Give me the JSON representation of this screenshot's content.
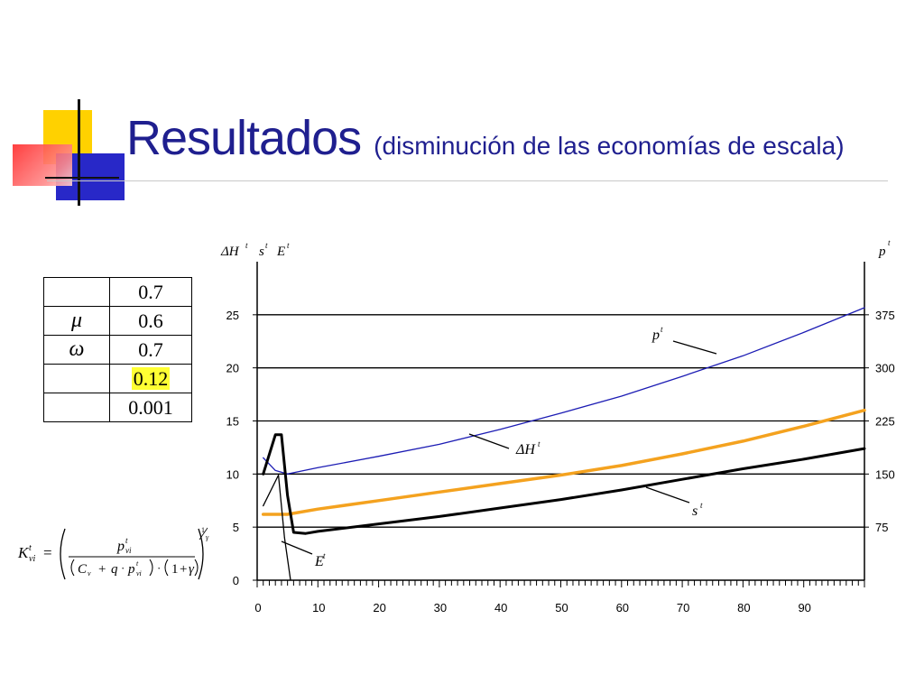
{
  "slide": {
    "title": "Resultados",
    "subtitle": "(disminución de las economías de escala)"
  },
  "params_table": {
    "rows": [
      {
        "symbol": "",
        "value": "0.7",
        "highlight": false
      },
      {
        "symbol": "μ",
        "value": "0.6",
        "highlight": false
      },
      {
        "symbol": "ω",
        "value": "0.7",
        "highlight": false
      },
      {
        "symbol": "",
        "value": "0.12",
        "highlight": true
      },
      {
        "symbol": "",
        "value": "0.001",
        "highlight": false
      }
    ]
  },
  "formula": {
    "lhs": "K",
    "lhs_sup": "t",
    "lhs_sub": "vi",
    "eq": "=",
    "num": "p",
    "num_sup": "t",
    "num_sub": "vi",
    "den_c": "C",
    "den_c_sub": "v",
    "den_plus": "+",
    "den_q": "q",
    "den_dot": "·",
    "den_p": "p",
    "den_p_sup": "t",
    "den_p_sub": "vi",
    "den_one": "1",
    "den_gamma": "γ",
    "exp_num": "1",
    "exp_den": "γ"
  },
  "colors": {
    "title": "#1f1f8f",
    "p_line": "#1c1cb4",
    "s_line": "#f4a21f",
    "E_line": "#000000",
    "highlight": "#ffff33",
    "deco_yellow": "#ffd100",
    "deco_blue": "#2828c8",
    "deco_red": "#ff2a2a"
  },
  "chart_data": {
    "type": "line",
    "left_axis_label": [
      "ΔH",
      "t",
      "s",
      "t",
      "E",
      "t"
    ],
    "right_axis_label": [
      "p",
      "t"
    ],
    "x_ticks": [
      0,
      10,
      20,
      30,
      40,
      50,
      60,
      70,
      80,
      90
    ],
    "xlim": [
      0,
      100
    ],
    "y_ticks": [
      0,
      5,
      10,
      15,
      20,
      25
    ],
    "ylim": [
      0,
      30
    ],
    "y2_ticks": [
      75,
      150,
      225,
      300,
      375
    ],
    "y2lim": [
      0,
      450
    ],
    "grid": true,
    "series": [
      {
        "name": "p",
        "sup": "t",
        "axis": "right",
        "color": "#1c1cb4",
        "width": 1.3,
        "x": [
          1,
          3,
          5,
          10,
          20,
          30,
          40,
          50,
          60,
          70,
          80,
          90,
          100
        ],
        "y": [
          173,
          155,
          150,
          159,
          175,
          192,
          213,
          236,
          260,
          288,
          317,
          350,
          385
        ]
      },
      {
        "name": "s",
        "sup": "t",
        "axis": "left",
        "color": "#f4a21f",
        "width": 3.5,
        "x": [
          1,
          5,
          10,
          20,
          30,
          40,
          50,
          60,
          70,
          80,
          90,
          100
        ],
        "y": [
          6.2,
          6.2,
          6.7,
          7.5,
          8.3,
          9.1,
          9.9,
          10.8,
          11.9,
          13.1,
          14.5,
          16.0
        ]
      },
      {
        "name": "ΔH",
        "sup": "t",
        "axis": "left",
        "color": "#000000",
        "width": 3,
        "x": [
          1,
          3,
          4,
          5,
          6,
          8,
          10,
          20,
          30,
          40,
          50,
          60,
          70,
          80,
          90,
          100
        ],
        "y": [
          10.0,
          13.7,
          13.7,
          8.0,
          4.5,
          4.4,
          4.6,
          5.3,
          6.0,
          6.8,
          7.6,
          8.5,
          9.5,
          10.5,
          11.4,
          12.4
        ]
      },
      {
        "name": "E",
        "sup": "t",
        "axis": "left",
        "color": "#000000",
        "width": 1.3,
        "x": [
          1,
          3.5,
          4.5,
          5.5
        ],
        "y": [
          7.0,
          9.9,
          4.0,
          0.0
        ]
      }
    ]
  }
}
